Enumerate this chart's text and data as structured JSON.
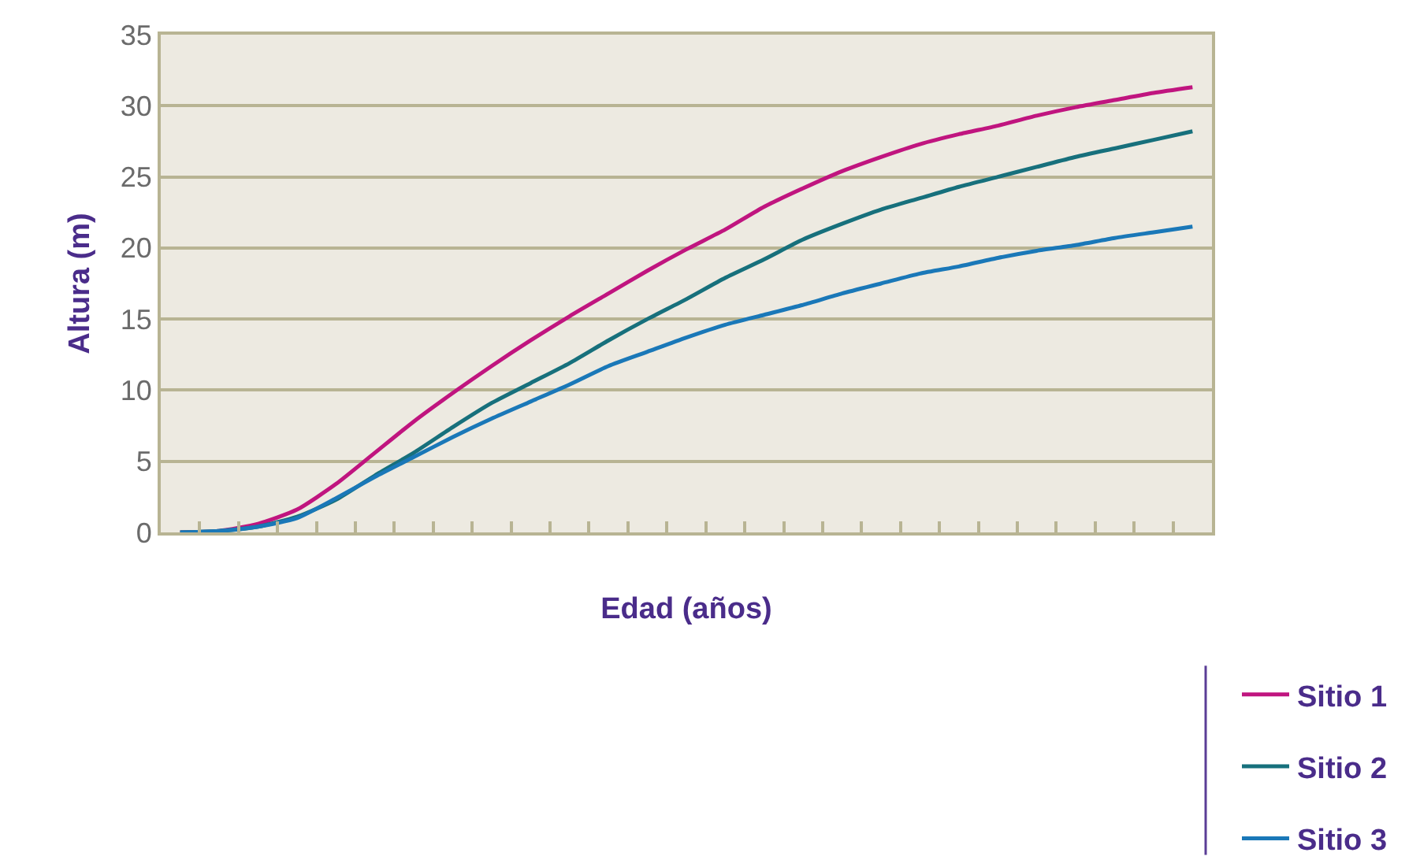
{
  "chart_data": {
    "type": "line",
    "xlabel": "Edad (años)",
    "ylabel": "Altura (m)",
    "categories": [
      null,
      null,
      null,
      null,
      null,
      null,
      null,
      null,
      null,
      null,
      null,
      null,
      null,
      null,
      null,
      null,
      null,
      null,
      null,
      null,
      null,
      null,
      null,
      null,
      null,
      null,
      null
    ],
    "series": [
      {
        "name": "Sitio 1",
        "color": "#c0157f",
        "values": [
          0,
          0.1,
          0.6,
          1.6,
          3.4,
          5.6,
          7.8,
          9.8,
          11.7,
          13.5,
          15.2,
          16.8,
          18.4,
          19.9,
          21.3,
          22.9,
          24.2,
          25.4,
          26.4,
          27.3,
          28.0,
          28.6,
          29.3,
          29.9,
          30.4,
          30.9,
          31.3
        ]
      },
      {
        "name": "Sitio 2",
        "color": "#17707c",
        "values": [
          0,
          0.1,
          0.4,
          1.1,
          2.3,
          4.0,
          5.6,
          7.4,
          9.1,
          10.5,
          11.9,
          13.5,
          15.0,
          16.4,
          17.9,
          19.2,
          20.6,
          21.7,
          22.7,
          23.5,
          24.3,
          25.0,
          25.7,
          26.4,
          27.0,
          27.6,
          28.2
        ]
      },
      {
        "name": "Sitio 3",
        "color": "#1a78b8",
        "values": [
          0,
          0.1,
          0.4,
          1.0,
          2.4,
          3.9,
          5.3,
          6.7,
          8.0,
          9.2,
          10.4,
          11.7,
          12.7,
          13.7,
          14.6,
          15.3,
          16.0,
          16.8,
          17.5,
          18.2,
          18.7,
          19.3,
          19.8,
          20.2,
          20.7,
          21.1,
          21.5
        ]
      }
    ],
    "ylim": [
      0,
      35
    ],
    "yticks": [
      0,
      5,
      10,
      15,
      20,
      25,
      30,
      35
    ],
    "grid": "y",
    "legend": "bottom right",
    "tick_labels": "y",
    "marker": "none",
    "line_style": "solid"
  }
}
